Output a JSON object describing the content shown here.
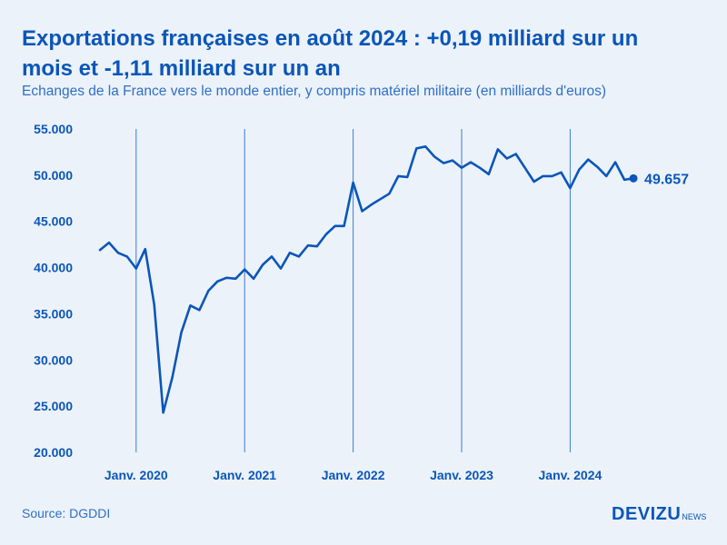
{
  "chart_data": {
    "type": "line",
    "title": "Exportations françaises en août 2024 : +0,19 milliard sur un mois et -1,11 milliard sur un an",
    "subtitle": "Echanges de la France vers le monde entier, y compris matériel militaire (en milliards d'euros)",
    "ylim": [
      20,
      55
    ],
    "y_ticks": [
      {
        "value": 55,
        "label": "55.000"
      },
      {
        "value": 50,
        "label": "50.000"
      },
      {
        "value": 45,
        "label": "45.000"
      },
      {
        "value": 40,
        "label": "40.000"
      },
      {
        "value": 35,
        "label": "35.000"
      },
      {
        "value": 30,
        "label": "30.000"
      },
      {
        "value": 25,
        "label": "25.000"
      },
      {
        "value": 20,
        "label": "20.000"
      }
    ],
    "x_ticks": [
      {
        "month_index": 4,
        "label": "Janv. 2020"
      },
      {
        "month_index": 16,
        "label": "Janv. 2021"
      },
      {
        "month_index": 28,
        "label": "Janv. 2022"
      },
      {
        "month_index": 40,
        "label": "Janv. 2023"
      },
      {
        "month_index": 52,
        "label": "Janv. 2024"
      }
    ],
    "series": [
      {
        "name": "Exportations",
        "color": "#0a56b8",
        "start": "Sept. 2019",
        "values": [
          41.9,
          42.7,
          41.6,
          41.2,
          39.9,
          42.0,
          36.0,
          24.3,
          28.1,
          33.0,
          35.9,
          35.4,
          37.5,
          38.5,
          38.9,
          38.8,
          39.8,
          38.8,
          40.3,
          41.2,
          39.9,
          41.6,
          41.2,
          42.4,
          42.3,
          43.6,
          44.5,
          44.5,
          49.2,
          46.1,
          46.8,
          47.4,
          48.0,
          49.9,
          49.8,
          52.9,
          53.1,
          52.0,
          51.3,
          51.6,
          50.8,
          51.4,
          50.8,
          50.1,
          52.8,
          51.8,
          52.3,
          50.8,
          49.3,
          49.9,
          49.9,
          50.3,
          48.6,
          50.6,
          51.7,
          50.9,
          49.9,
          51.4,
          49.5,
          49.657
        ]
      }
    ],
    "last_value_label": "49.657"
  },
  "footer": {
    "source": "Source: DGDDI",
    "logo_main": "DEVIZU",
    "logo_sub": "NEWS"
  }
}
